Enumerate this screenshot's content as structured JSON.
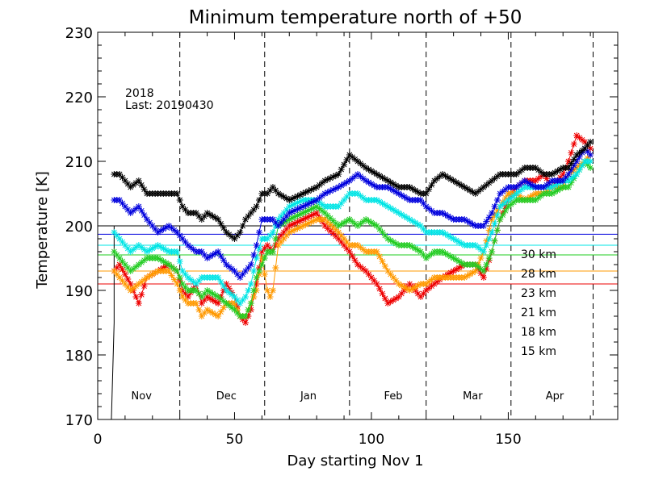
{
  "chart_data": {
    "type": "line",
    "title": "Minimum temperature north of +50",
    "xlabel": "Day starting Nov 1",
    "ylabel": "Temperature [K]",
    "xlim": [
      0,
      190
    ],
    "ylim": [
      170,
      230
    ],
    "x_ticks": [
      0,
      50,
      100,
      150
    ],
    "y_ticks": [
      170,
      180,
      190,
      200,
      210,
      220,
      230
    ],
    "grid": false,
    "legend_position": "right",
    "annotation": {
      "year": "2018",
      "last": "Last: 20190430"
    },
    "months": [
      {
        "label": "Nov",
        "x": 16
      },
      {
        "label": "Dec",
        "x": 47
      },
      {
        "label": "Jan",
        "x": 77
      },
      {
        "label": "Feb",
        "x": 108
      },
      {
        "label": "Mar",
        "x": 137
      },
      {
        "label": "Apr",
        "x": 167
      }
    ],
    "month_dividers": [
      30,
      61,
      92,
      120,
      151,
      181
    ],
    "thresholds": [
      {
        "name": "15 km",
        "value": 200.0,
        "color": "#000000"
      },
      {
        "name": "18 km",
        "value": 198.7,
        "color": "#0000dd"
      },
      {
        "name": "21 km",
        "value": 197.0,
        "color": "#00e5e5"
      },
      {
        "name": "23 km",
        "value": 195.5,
        "color": "#22cc22"
      },
      {
        "name": "28 km",
        "value": 193.0,
        "color": "#ff9900"
      },
      {
        "name": "30 km",
        "value": 191.0,
        "color": "#ee0000"
      }
    ],
    "start_drop": {
      "x": [
        5,
        6,
        6
      ],
      "y": [
        170,
        185,
        200
      ]
    },
    "series": [
      {
        "name": "30 km",
        "color": "#ee0000",
        "x": [
          6,
          8,
          12,
          15,
          18,
          22,
          26,
          29,
          31,
          33,
          36,
          38,
          40,
          44,
          47,
          50,
          52,
          54,
          56,
          58,
          60,
          62,
          64,
          66,
          70,
          75,
          80,
          83,
          88,
          92,
          95,
          98,
          102,
          106,
          110,
          114,
          118,
          120,
          123,
          126,
          130,
          134,
          138,
          141,
          144,
          147,
          150,
          153,
          156,
          160,
          163,
          166,
          170,
          172,
          175,
          178,
          180
        ],
        "y": [
          193,
          194,
          191,
          188,
          192,
          193,
          194,
          193,
          190,
          189,
          191,
          188,
          189,
          188,
          191,
          189,
          186,
          185,
          187,
          191,
          196,
          197,
          196,
          198,
          200,
          201,
          202,
          200,
          198,
          196,
          194,
          193,
          191,
          188,
          189,
          191,
          189,
          190,
          191,
          192,
          193,
          194,
          194,
          192,
          196,
          201,
          204,
          206,
          207,
          207,
          208,
          206,
          208,
          210,
          214,
          213,
          212
        ]
      },
      {
        "name": "28 km",
        "color": "#ff9900",
        "x": [
          6,
          8,
          12,
          15,
          18,
          22,
          26,
          29,
          31,
          33,
          36,
          38,
          40,
          44,
          47,
          50,
          52,
          54,
          56,
          58,
          60,
          62,
          63,
          64,
          66,
          70,
          75,
          80,
          83,
          88,
          92,
          95,
          98,
          102,
          106,
          110,
          114,
          118,
          120,
          123,
          126,
          130,
          134,
          138,
          141,
          144,
          147,
          150,
          153,
          156,
          160,
          163,
          166,
          170,
          172,
          175,
          178,
          180
        ],
        "y": [
          193,
          192,
          190,
          191,
          192,
          193,
          193,
          191,
          189,
          188,
          188,
          186,
          187,
          186,
          188,
          188,
          186,
          186,
          188,
          190,
          195,
          190,
          189,
          190,
          197,
          199,
          200,
          201,
          201,
          199,
          197,
          197,
          196,
          196,
          193,
          191,
          190,
          191,
          191,
          192,
          192,
          192,
          192,
          193,
          196,
          201,
          203,
          205,
          205,
          204,
          205,
          205,
          206,
          206,
          208,
          209,
          210,
          211
        ]
      },
      {
        "name": "23 km",
        "color": "#22cc22",
        "x": [
          6,
          8,
          12,
          15,
          18,
          22,
          26,
          29,
          31,
          33,
          36,
          38,
          40,
          44,
          47,
          50,
          52,
          54,
          56,
          58,
          60,
          62,
          64,
          66,
          70,
          75,
          80,
          83,
          88,
          92,
          95,
          98,
          102,
          106,
          110,
          114,
          118,
          120,
          123,
          126,
          130,
          134,
          138,
          141,
          144,
          147,
          150,
          153,
          156,
          160,
          163,
          166,
          170,
          172,
          175,
          178,
          180
        ],
        "y": [
          196,
          195,
          193,
          194,
          195,
          195,
          194,
          193,
          191,
          190,
          190,
          189,
          190,
          189,
          188,
          187,
          186,
          186,
          188,
          192,
          194,
          196,
          196,
          200,
          201,
          202,
          203,
          202,
          200,
          201,
          200,
          201,
          200,
          198,
          197,
          197,
          196,
          195,
          196,
          196,
          195,
          194,
          194,
          193,
          196,
          201,
          203,
          204,
          204,
          204,
          205,
          205,
          206,
          206,
          208,
          210,
          209
        ]
      },
      {
        "name": "21 km",
        "color": "#00e5e5",
        "x": [
          6,
          8,
          12,
          15,
          18,
          22,
          26,
          29,
          31,
          33,
          36,
          38,
          40,
          44,
          47,
          50,
          52,
          54,
          56,
          58,
          60,
          62,
          64,
          66,
          70,
          75,
          80,
          83,
          88,
          92,
          95,
          98,
          102,
          106,
          110,
          114,
          118,
          120,
          123,
          126,
          130,
          134,
          138,
          141,
          144,
          147,
          150,
          153,
          156,
          160,
          163,
          166,
          170,
          172,
          175,
          178,
          180
        ],
        "y": [
          199,
          198,
          196,
          197,
          196,
          197,
          196,
          196,
          193,
          192,
          191,
          192,
          192,
          192,
          190,
          189,
          188,
          189,
          191,
          195,
          198,
          198,
          199,
          201,
          203,
          204,
          204,
          203,
          203,
          205,
          205,
          204,
          204,
          203,
          202,
          201,
          200,
          199,
          199,
          199,
          198,
          197,
          197,
          196,
          199,
          203,
          204,
          205,
          206,
          206,
          206,
          206,
          207,
          207,
          208,
          210,
          210
        ]
      },
      {
        "name": "18 km",
        "color": "#0000dd",
        "x": [
          6,
          8,
          12,
          15,
          18,
          22,
          26,
          29,
          31,
          33,
          36,
          38,
          40,
          44,
          47,
          50,
          52,
          54,
          56,
          58,
          60,
          62,
          64,
          66,
          70,
          75,
          80,
          83,
          88,
          92,
          95,
          98,
          102,
          106,
          110,
          114,
          118,
          120,
          123,
          126,
          130,
          134,
          138,
          141,
          144,
          147,
          150,
          153,
          156,
          160,
          163,
          166,
          170,
          172,
          175,
          178,
          180
        ],
        "y": [
          204,
          204,
          202,
          203,
          201,
          199,
          200,
          199,
          198,
          197,
          196,
          196,
          195,
          196,
          194,
          193,
          192,
          193,
          194,
          197,
          201,
          201,
          201,
          200,
          202,
          203,
          204,
          205,
          206,
          207,
          208,
          207,
          206,
          206,
          205,
          204,
          204,
          203,
          202,
          202,
          201,
          201,
          200,
          200,
          202,
          205,
          206,
          206,
          207,
          206,
          206,
          207,
          207,
          208,
          210,
          212,
          211
        ]
      },
      {
        "name": "15 km",
        "color": "#000000",
        "x": [
          6,
          8,
          12,
          15,
          18,
          22,
          26,
          29,
          31,
          33,
          36,
          38,
          40,
          44,
          47,
          50,
          52,
          54,
          56,
          58,
          60,
          62,
          64,
          66,
          70,
          75,
          80,
          83,
          88,
          92,
          95,
          98,
          102,
          106,
          110,
          114,
          118,
          120,
          123,
          126,
          130,
          134,
          138,
          141,
          144,
          147,
          150,
          153,
          156,
          160,
          163,
          166,
          170,
          172,
          175,
          178,
          180
        ],
        "y": [
          208,
          208,
          206,
          207,
          205,
          205,
          205,
          205,
          203,
          202,
          202,
          201,
          202,
          201,
          199,
          198,
          199,
          201,
          202,
          203,
          205,
          205,
          206,
          205,
          204,
          205,
          206,
          207,
          208,
          211,
          210,
          209,
          208,
          207,
          206,
          206,
          205,
          205,
          207,
          208,
          207,
          206,
          205,
          206,
          207,
          208,
          208,
          208,
          209,
          209,
          208,
          208,
          209,
          209,
          211,
          212,
          213
        ]
      }
    ]
  }
}
